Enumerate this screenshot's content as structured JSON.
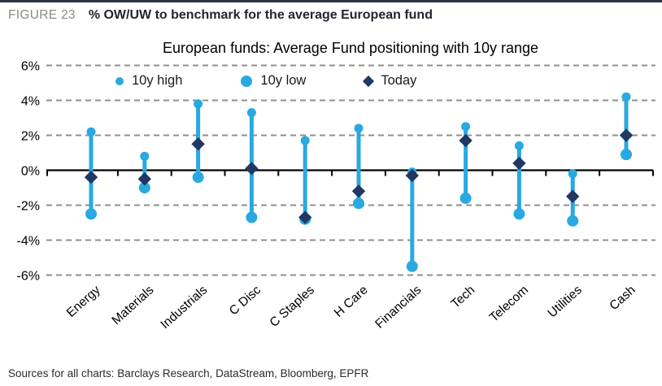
{
  "page": {
    "figure_label": "FIGURE 23",
    "figure_title": "% OW/UW to benchmark for the average European fund",
    "sources": "Sources for all charts: Barclays Research, DataStream, Bloomberg, EPFR"
  },
  "colors": {
    "range_blue": "#29A9E1",
    "today_navy": "#1F3864",
    "gridline_gray": "#8f8f8f",
    "axis_black": "#000000",
    "top_rule": "#2b3242",
    "figure_label_gray": "#8a8a8a"
  },
  "chart_data": {
    "type": "scatter",
    "subtype": "high-low-range-with-current",
    "title": "European funds: Average Fund positioning with 10y range",
    "unit": "%",
    "categories": [
      "Energy",
      "Materials",
      "Industrials",
      "C Disc",
      "C Staples",
      "H Care",
      "Financials",
      "Tech",
      "Telecom",
      "Utilities",
      "Cash"
    ],
    "series": [
      {
        "name": "10y high",
        "marker": "circle-small",
        "values": [
          2.2,
          0.8,
          3.8,
          3.3,
          1.7,
          2.4,
          -0.1,
          2.5,
          1.4,
          -0.2,
          4.2
        ]
      },
      {
        "name": "10y low",
        "marker": "circle-large",
        "values": [
          -2.5,
          -1.0,
          -0.4,
          -2.7,
          -2.8,
          -1.9,
          -5.5,
          -1.6,
          -2.5,
          -2.9,
          0.9
        ]
      },
      {
        "name": "Today",
        "marker": "diamond",
        "values": [
          -0.4,
          -0.5,
          1.5,
          0.1,
          -2.7,
          -1.2,
          -0.3,
          1.7,
          0.4,
          -1.5,
          2.0
        ]
      }
    ],
    "ylim": [
      -6,
      6
    ],
    "y_ticks": [
      {
        "value": 6,
        "label": "6%"
      },
      {
        "value": 4,
        "label": "4%"
      },
      {
        "value": 2,
        "label": "2%"
      },
      {
        "value": 0,
        "label": "0%"
      },
      {
        "value": -2,
        "label": "-2%"
      },
      {
        "value": -4,
        "label": "-4%"
      },
      {
        "value": -6,
        "label": "-6%"
      }
    ],
    "grid": "horizontal-dashed",
    "legend_position": "top-inside"
  }
}
